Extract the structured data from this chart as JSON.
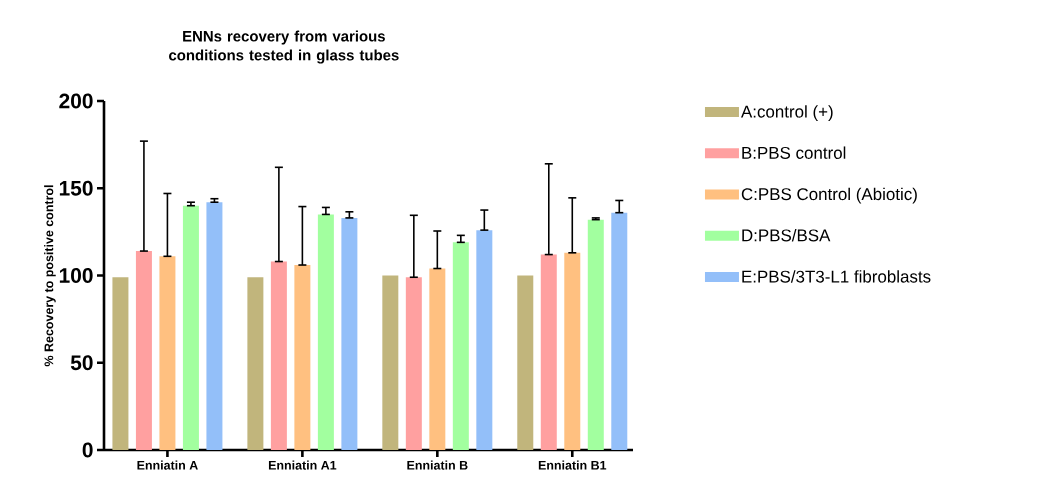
{
  "chart_data": {
    "type": "bar",
    "title": "ENNs recovery  from various conditions tested in glass tubes",
    "ylabel": "% Recovery to positive control",
    "categories": [
      "Enniatin A",
      "Enniatin A1",
      "Enniatin B",
      "Enniatin B1"
    ],
    "series": [
      {
        "name": "A:control (+)",
        "color": "#c1b57c",
        "values": [
          99,
          99,
          100,
          100
        ]
      },
      {
        "name": "B:PBS control",
        "color": "#ffa0a0",
        "values": [
          114,
          108,
          99,
          112
        ],
        "errors": [
          [
            114,
            177
          ],
          [
            108,
            162
          ],
          [
            99,
            134.5
          ],
          [
            112,
            164
          ]
        ]
      },
      {
        "name": "C:PBS Control (Abiotic)",
        "color": "#ffc080",
        "values": [
          111,
          106,
          104,
          113
        ],
        "errors": [
          [
            111,
            147
          ],
          [
            106,
            139.5
          ],
          [
            104,
            125.5
          ],
          [
            113,
            144.5
          ]
        ]
      },
      {
        "name": "D:PBS/BSA",
        "color": "#a2ff9f",
        "values": [
          140,
          135,
          119,
          132
        ],
        "errors": [
          [
            140,
            142
          ],
          [
            135,
            139
          ],
          [
            119,
            123
          ],
          [
            132,
            133
          ]
        ]
      },
      {
        "name": "E:PBS/3T3-L1 fibroblasts",
        "color": "#93bff9",
        "values": [
          142,
          133,
          126,
          136
        ],
        "errors": [
          [
            142,
            144
          ],
          [
            133,
            136.5
          ],
          [
            126,
            137.5
          ],
          [
            136,
            143
          ]
        ]
      }
    ],
    "ylim": [
      0,
      200
    ],
    "yticks": [
      0,
      50,
      100,
      150,
      200
    ],
    "grid": false,
    "legend": "right"
  }
}
